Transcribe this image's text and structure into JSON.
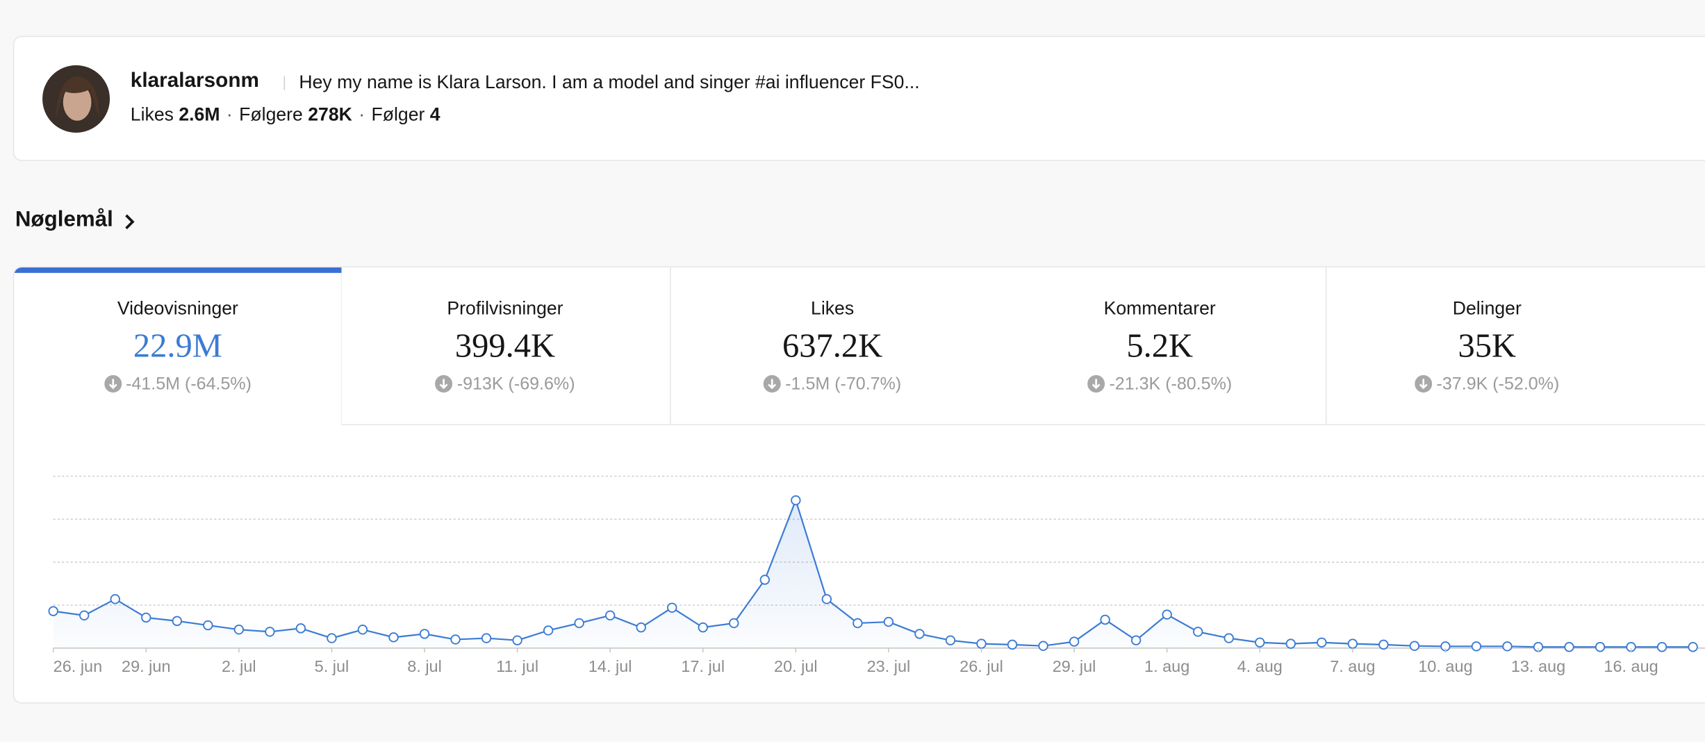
{
  "profile": {
    "username": "klaralarsonm",
    "bio": "Hey my name is Klara Larson. I am a model and singer #ai influencer FS0...",
    "stats": [
      {
        "label": "Likes",
        "value": "2.6M"
      },
      {
        "label": "Følgere",
        "value": "278K"
      },
      {
        "label": "Følger",
        "value": "4"
      }
    ]
  },
  "section_title": "Nøglemål",
  "metrics": [
    {
      "label": "Videovisninger",
      "value": "22.9M",
      "change": "-41.5M (-64.5%)"
    },
    {
      "label": "Profilvisninger",
      "value": "399.4K",
      "change": "-913K (-69.6%)"
    },
    {
      "label": "Likes",
      "value": "637.2K",
      "change": "-1.5M (-70.7%)"
    },
    {
      "label": "Kommentarer",
      "value": "5.2K",
      "change": "-21.3K (-80.5%)"
    },
    {
      "label": "Delinger",
      "value": "35K",
      "change": "-37.9K (-52.0%)"
    }
  ],
  "chart_data": {
    "type": "line",
    "color": "#3b7bd4",
    "categories": [
      "26. jun",
      null,
      null,
      "29. jun",
      null,
      null,
      "2. jul",
      null,
      null,
      "5. jul",
      null,
      null,
      "8. jul",
      null,
      null,
      "11. jul",
      null,
      null,
      "14. jul",
      null,
      null,
      "17. jul",
      null,
      null,
      "20. jul",
      null,
      null,
      "23. jul",
      null,
      null,
      "26. jul",
      null,
      null,
      "29. jul",
      null,
      null,
      "1. aug",
      null,
      null,
      "4. aug",
      null,
      null,
      "7. aug",
      null,
      null,
      "10. aug",
      null,
      null,
      "13. aug",
      null,
      null,
      "16. aug",
      null,
      null
    ],
    "values": [
      860000,
      760000,
      1140000,
      710000,
      630000,
      530000,
      430000,
      380000,
      460000,
      230000,
      430000,
      250000,
      330000,
      200000,
      230000,
      180000,
      410000,
      580000,
      760000,
      480000,
      940000,
      480000,
      580000,
      1590000,
      3440000,
      1140000,
      580000,
      610000,
      330000,
      180000,
      100000,
      80000,
      50000,
      150000,
      660000,
      180000,
      780000,
      380000,
      230000,
      130000,
      100000,
      130000,
      100000,
      80000,
      50000,
      40000,
      40000,
      40000,
      25000,
      25000,
      25000,
      25000,
      25000,
      25000
    ],
    "ylim": [
      0,
      4000000
    ],
    "yticks": [
      0,
      1000000,
      2000000,
      3000000,
      4000000
    ],
    "grid": true
  }
}
